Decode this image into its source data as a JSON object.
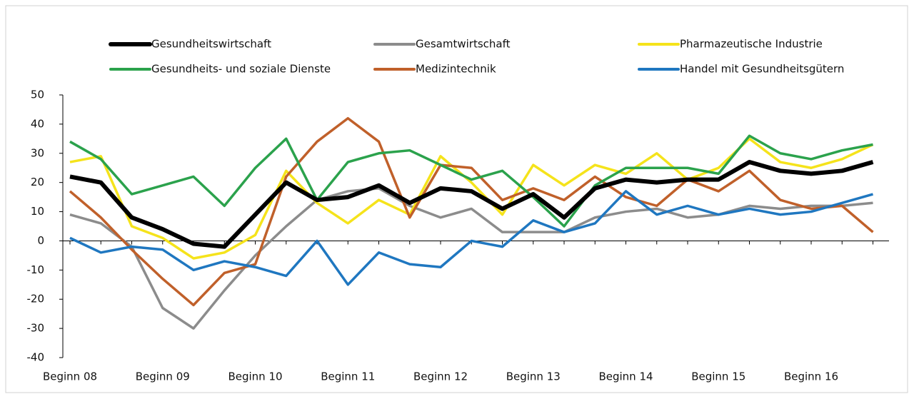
{
  "chart_data": {
    "type": "line",
    "categories": [
      "Beginn 08",
      null,
      null,
      "Beginn 09",
      null,
      null,
      "Beginn 10",
      null,
      null,
      "Beginn 11",
      null,
      null,
      "Beginn 12",
      null,
      null,
      "Beginn 13",
      null,
      null,
      "Beginn 14",
      null,
      null,
      "Beginn 15",
      null,
      null,
      "Beginn 16",
      null,
      null
    ],
    "ylim": [
      -40,
      50
    ],
    "yticks": [
      -40,
      -30,
      -20,
      -10,
      0,
      10,
      20,
      30,
      40,
      50
    ],
    "series": [
      {
        "name": "Gesundheitswirtschaft",
        "color": "#000000",
        "values": [
          22,
          20,
          8,
          4,
          -1,
          -2,
          9,
          20,
          14,
          15,
          19,
          13,
          18,
          17,
          11,
          16,
          8,
          18,
          21,
          20,
          21,
          21,
          27,
          24,
          23,
          24,
          27
        ]
      },
      {
        "name": "Gesamtwirtschaft",
        "color": "#8c8c8c",
        "values": [
          9,
          6,
          -2,
          -23,
          -30,
          -17,
          -5,
          5,
          14,
          17,
          18,
          12,
          8,
          11,
          3,
          3,
          3,
          8,
          10,
          11,
          8,
          9,
          12,
          11,
          12,
          12,
          13
        ]
      },
      {
        "name": "Pharmazeutische Industrie",
        "color": "#f5e31b",
        "values": [
          27,
          29,
          5,
          1,
          -6,
          -4,
          2,
          24,
          13,
          6,
          14,
          9,
          29,
          20,
          9,
          26,
          19,
          26,
          23,
          30,
          21,
          25,
          35,
          27,
          25,
          28,
          33
        ]
      },
      {
        "name": "Gesundheits- und soziale Dienste",
        "color": "#2ba24c",
        "values": [
          34,
          28,
          16,
          19,
          22,
          12,
          25,
          35,
          14,
          27,
          30,
          31,
          26,
          21,
          24,
          15,
          5,
          19,
          25,
          25,
          25,
          23,
          36,
          30,
          28,
          31,
          33
        ]
      },
      {
        "name": "Medizintechnik",
        "color": "#c0602a",
        "values": [
          17,
          8,
          -3,
          -13,
          -22,
          -11,
          -8,
          22,
          34,
          42,
          34,
          8,
          26,
          25,
          14,
          18,
          14,
          22,
          15,
          12,
          21,
          17,
          24,
          14,
          11,
          12,
          3
        ]
      },
      {
        "name": "Handel mit Gesundheitsgütern",
        "color": "#1f77c0",
        "values": [
          1,
          -4,
          -2,
          -3,
          -10,
          -7,
          -9,
          -12,
          0,
          -15,
          -4,
          -8,
          -9,
          0,
          -2,
          7,
          3,
          6,
          17,
          9,
          12,
          9,
          11,
          9,
          10,
          13,
          16
        ]
      }
    ]
  }
}
